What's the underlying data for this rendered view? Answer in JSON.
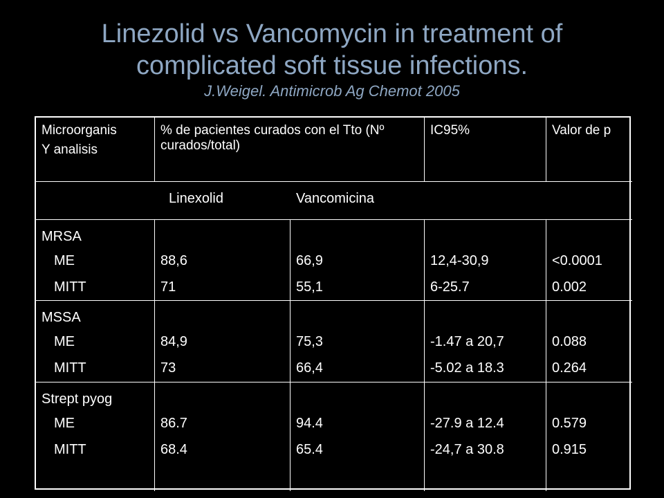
{
  "slide": {
    "title_line1": "Linezolid vs Vancomycin in treatment of",
    "title_line2": "complicated soft tissue infections.",
    "citation": "J.Weigel. Antimicrob Ag Chemot 2005"
  },
  "table": {
    "headers": {
      "micro": [
        "Microorganis",
        "Y analisis"
      ],
      "percent": "% de pacientes curados con el Tto  (Nº curados/total)",
      "ci": "IC95%",
      "p": "Valor de p"
    },
    "subheader": {
      "left": "Linexolid",
      "right": "Vancomicina"
    },
    "rows": [
      {
        "organism": "MRSA",
        "analysis": [
          "ME",
          "MITT"
        ],
        "linezolid": [
          "88,6",
          "71"
        ],
        "vancomycin": [
          "66,9",
          "55,1"
        ],
        "ci": [
          "12,4-30,9",
          "6-25.7"
        ],
        "p": [
          "<0.0001",
          "0.002"
        ]
      },
      {
        "organism": "MSSA",
        "analysis": [
          "ME",
          "MITT"
        ],
        "linezolid": [
          "84,9",
          "73"
        ],
        "vancomycin": [
          "75,3",
          "66,4"
        ],
        "ci": [
          "-1.47 a 20,7",
          "-5.02 a 18.3"
        ],
        "p": [
          "0.088",
          "0.264"
        ]
      },
      {
        "organism": "Strept pyog",
        "analysis": [
          "ME",
          "MITT"
        ],
        "linezolid": [
          "86.7",
          "68.4"
        ],
        "vancomycin": [
          "94.4",
          "65.4"
        ],
        "ci": [
          "-27.9 a 12.4",
          "-24,7 a 30.8"
        ],
        "p": [
          "0.579",
          "0.915"
        ]
      }
    ]
  }
}
